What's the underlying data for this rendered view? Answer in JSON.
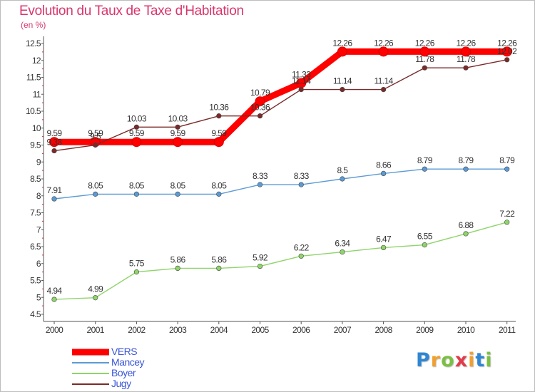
{
  "header": {
    "title": "Evolution du Taux de Taxe d'Habitation",
    "unit": "(en %)"
  },
  "logo": {
    "letters": [
      "P",
      "r",
      "o",
      "x",
      "i",
      "t",
      "i"
    ],
    "colors": [
      "#2f86d1",
      "#f0a030",
      "#7bc043",
      "#e23b4a",
      "#f0a030",
      "#2f86d1",
      "#7bc043"
    ]
  },
  "chart_data": {
    "type": "line",
    "title": "Evolution du Taux de Taxe d'Habitation",
    "subtitle": "(en %)",
    "x": [
      "2000",
      "2001",
      "2002",
      "2003",
      "2004",
      "2005",
      "2006",
      "2007",
      "2008",
      "2009",
      "2010",
      "2011"
    ],
    "ylim": [
      4.5,
      12.5
    ],
    "yticks": [
      "4.5",
      "5",
      "5.5",
      "6",
      "6.5",
      "7",
      "7.5",
      "8",
      "8.5",
      "9",
      "9.5",
      "10",
      "10.5",
      "11",
      "11.5",
      "12",
      "12.5"
    ],
    "grid": false,
    "legend_position": "bottom-left",
    "series": [
      {
        "name": "VERS",
        "color": "#ff0000",
        "values": [
          9.59,
          9.59,
          9.59,
          9.59,
          9.59,
          10.79,
          11.33,
          12.26,
          12.26,
          12.26,
          12.26,
          12.26
        ],
        "labels": [
          "9.59",
          "9.59",
          "9.59",
          "9.59",
          "9.59",
          "10.79",
          "11.33",
          "12.26",
          "12.26",
          "12.26",
          "12.26",
          "12.26"
        ]
      },
      {
        "name": "Mancey",
        "color": "#5b9bd5",
        "values": [
          7.91,
          8.05,
          8.05,
          8.05,
          8.05,
          8.33,
          8.33,
          8.5,
          8.66,
          8.79,
          8.79,
          8.79
        ],
        "labels": [
          "7.91",
          "8.05",
          "8.05",
          "8.05",
          "8.05",
          "8.33",
          "8.33",
          "8.5",
          "8.66",
          "8.79",
          "8.79",
          "8.79"
        ]
      },
      {
        "name": "Boyer",
        "color": "#8fd46b",
        "values": [
          4.94,
          4.99,
          5.75,
          5.86,
          5.86,
          5.92,
          6.22,
          6.34,
          6.47,
          6.55,
          6.88,
          7.22
        ],
        "labels": [
          "4.94",
          "4.99",
          "5.75",
          "5.86",
          "5.86",
          "5.92",
          "6.22",
          "6.34",
          "6.47",
          "6.55",
          "6.88",
          "7.22"
        ]
      },
      {
        "name": "Jugy",
        "color": "#7a2a2a",
        "values": [
          9.33,
          9.5,
          10.03,
          10.03,
          10.36,
          10.36,
          11.14,
          11.14,
          11.14,
          11.78,
          11.78,
          12.02
        ],
        "labels": [
          "9.33",
          "9.5",
          "10.03",
          "10.03",
          "10.36",
          "10.36",
          "11.14",
          "11.14",
          "11.14",
          "11.78",
          "11.78",
          "12.02"
        ]
      }
    ]
  }
}
